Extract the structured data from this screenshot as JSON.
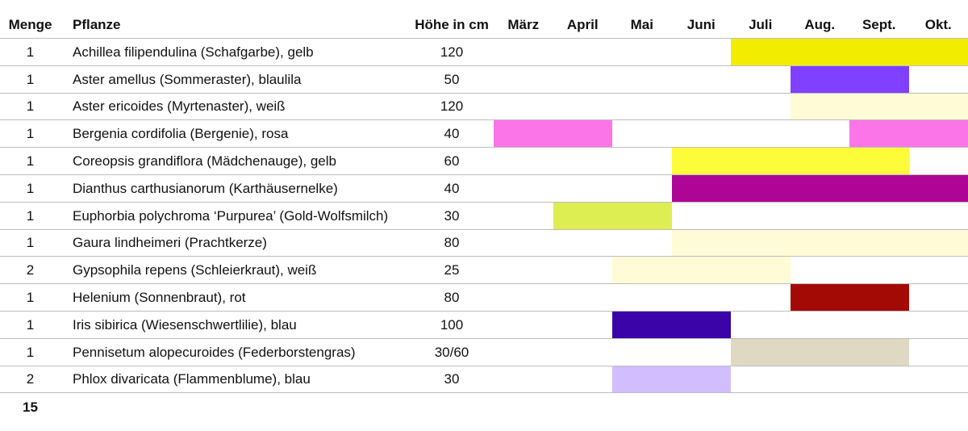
{
  "header": {
    "menge": "Menge",
    "pflanze": "Pflanze",
    "hoehe": "Höhe in cm",
    "months": [
      "März",
      "April",
      "Mai",
      "Juni",
      "Juli",
      "Aug.",
      "Sept.",
      "Okt."
    ]
  },
  "rows": [
    {
      "menge": "1",
      "pflanze": "Achillea filipendulina (Schafgarbe), gelb",
      "hoehe": "120",
      "bloom": [
        4,
        7
      ],
      "color": "#f2ec00"
    },
    {
      "menge": "1",
      "pflanze": "Aster amellus (Sommeraster), blaulila",
      "hoehe": "50",
      "bloom": [
        5,
        6
      ],
      "color": "#8040ff"
    },
    {
      "menge": "1",
      "pflanze": "Aster ericoides (Myrtenaster), weiß",
      "hoehe": "120",
      "bloom": [
        5,
        7
      ],
      "color": "#fffbd6"
    },
    {
      "menge": "1",
      "pflanze": "Bergenia cordifolia (Bergenie), rosa",
      "hoehe": "40",
      "bloom": [
        0,
        1
      ],
      "bloom2": [
        6,
        7
      ],
      "color": "#fb75e8"
    },
    {
      "menge": "1",
      "pflanze": "Coreopsis grandiflora (Mädchenauge), gelb",
      "hoehe": "60",
      "bloom": [
        3,
        6
      ],
      "color": "#fcfc3a"
    },
    {
      "menge": "1",
      "pflanze": "Dianthus carthusianorum (Karthäusernelke)",
      "hoehe": "40",
      "bloom": [
        3,
        7
      ],
      "color": "#ad0595"
    },
    {
      "menge": "1",
      "pflanze": "Euphorbia polychroma  ‘Purpurea’ (Gold-Wolfsmilch)",
      "hoehe": "30",
      "bloom": [
        1,
        2
      ],
      "color": "#dcee52"
    },
    {
      "menge": "1",
      "pflanze": "Gaura lindheimeri (Prachtkerze)",
      "hoehe": "80",
      "bloom": [
        3,
        7
      ],
      "color": "#fffbd6"
    },
    {
      "menge": "2",
      "pflanze": "Gypsophila repens (Schleierkraut), weiß",
      "hoehe": "25",
      "bloom": [
        2,
        4
      ],
      "color": "#fffbd6"
    },
    {
      "menge": "1",
      "pflanze": "Helenium (Sonnenbraut), rot",
      "hoehe": "80",
      "bloom": [
        5,
        6
      ],
      "color": "#a30a05"
    },
    {
      "menge": "1",
      "pflanze": "Iris sibirica (Wiesenschwertlilie), blau",
      "hoehe": "100",
      "bloom": [
        2,
        3
      ],
      "color": "#3a04a8"
    },
    {
      "menge": "1",
      "pflanze": "Pennisetum alopecuroides (Federborstengras)",
      "hoehe": "30/60",
      "bloom": [
        4,
        6
      ],
      "color": "#dfd9c4"
    },
    {
      "menge": "2",
      "pflanze": "Phlox divaricata (Flammenblume), blau",
      "hoehe": "30",
      "bloom": [
        2,
        3
      ],
      "color": "#d1bdff"
    }
  ],
  "total": "15"
}
